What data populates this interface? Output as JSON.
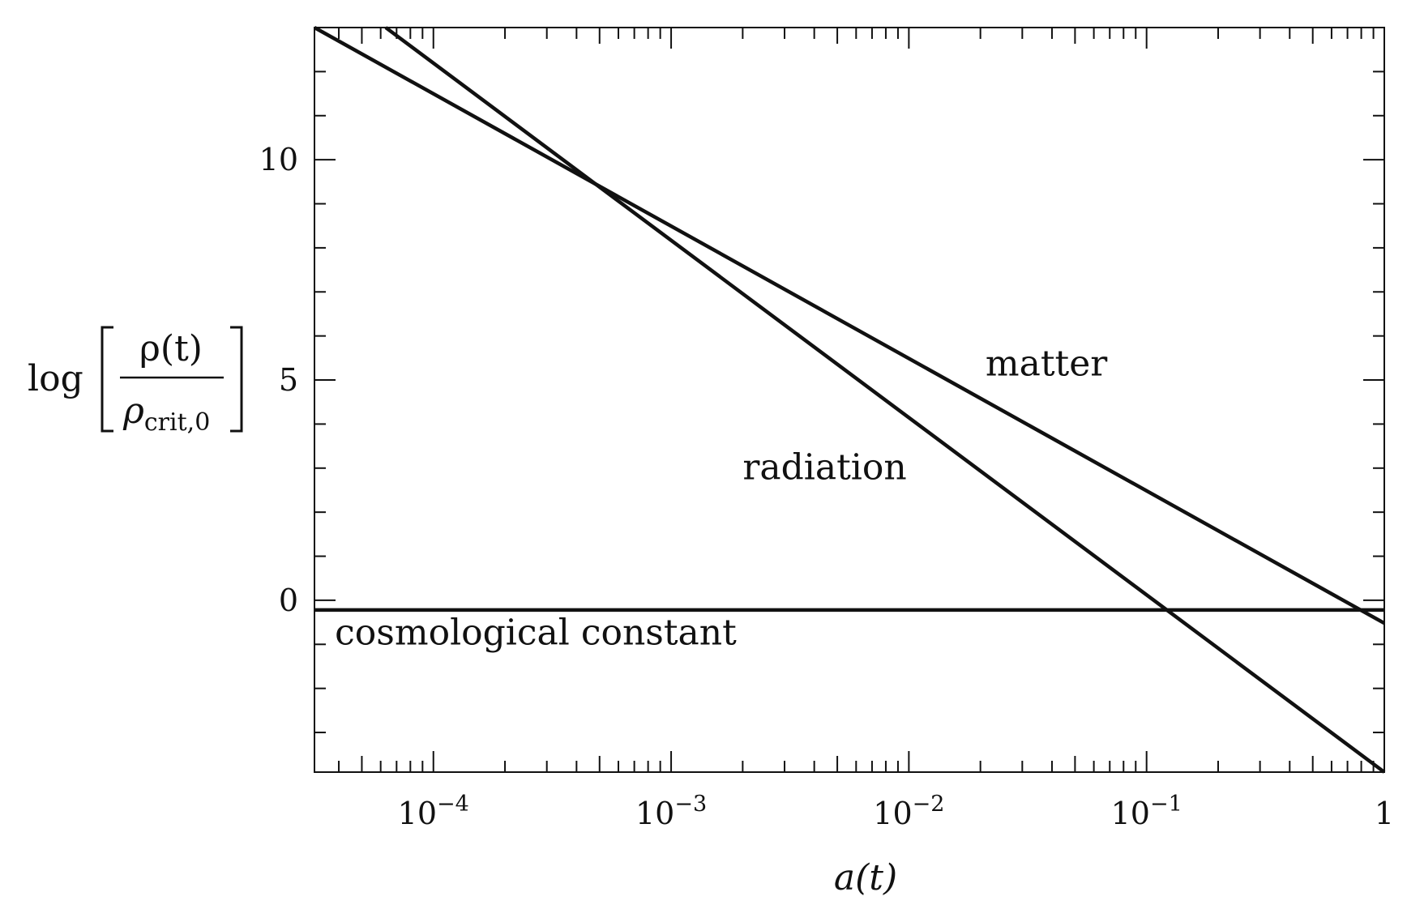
{
  "chart_data": {
    "type": "line",
    "title": "",
    "xlabel": "a(t)",
    "ylabel": {
      "prefix": "log",
      "numerator": "ρ(t)",
      "denominator_symbol": "ρ",
      "denominator_subscript": "crit,0"
    },
    "x_scale": "log",
    "xlim": [
      3.16e-05,
      1.0
    ],
    "ylim": [
      -3.9,
      13.0
    ],
    "x_ticks": [
      {
        "value": 0.0001,
        "base": "10",
        "exp": "−4"
      },
      {
        "value": 0.001,
        "base": "10",
        "exp": "−3"
      },
      {
        "value": 0.01,
        "base": "10",
        "exp": "−2"
      },
      {
        "value": 0.1,
        "base": "10",
        "exp": "−1"
      },
      {
        "value": 1,
        "base": "1",
        "exp": ""
      }
    ],
    "y_ticks": [
      {
        "value": 0,
        "label": "0"
      },
      {
        "value": 5,
        "label": "5"
      },
      {
        "value": 10,
        "label": "10"
      }
    ],
    "y_minor_step": 1,
    "grid": false,
    "line_color": "#111111",
    "series": [
      {
        "name": "matter",
        "x": [
          3.16e-05,
          1.0
        ],
        "y": [
          13.0,
          -0.52
        ]
      },
      {
        "name": "radiation",
        "x": [
          6.3e-05,
          1.0
        ],
        "y": [
          13.0,
          -3.9
        ]
      },
      {
        "name": "cosmological constant",
        "x": [
          3.16e-05,
          1.0
        ],
        "y": [
          -0.22,
          -0.22
        ]
      }
    ],
    "annotations": [
      {
        "text": "matter",
        "x": 0.021,
        "y": 5.1
      },
      {
        "text": "radiation",
        "x": 0.002,
        "y": 2.75
      },
      {
        "text": "cosmological constant",
        "x": 3.85e-05,
        "y": -1.0
      }
    ]
  }
}
